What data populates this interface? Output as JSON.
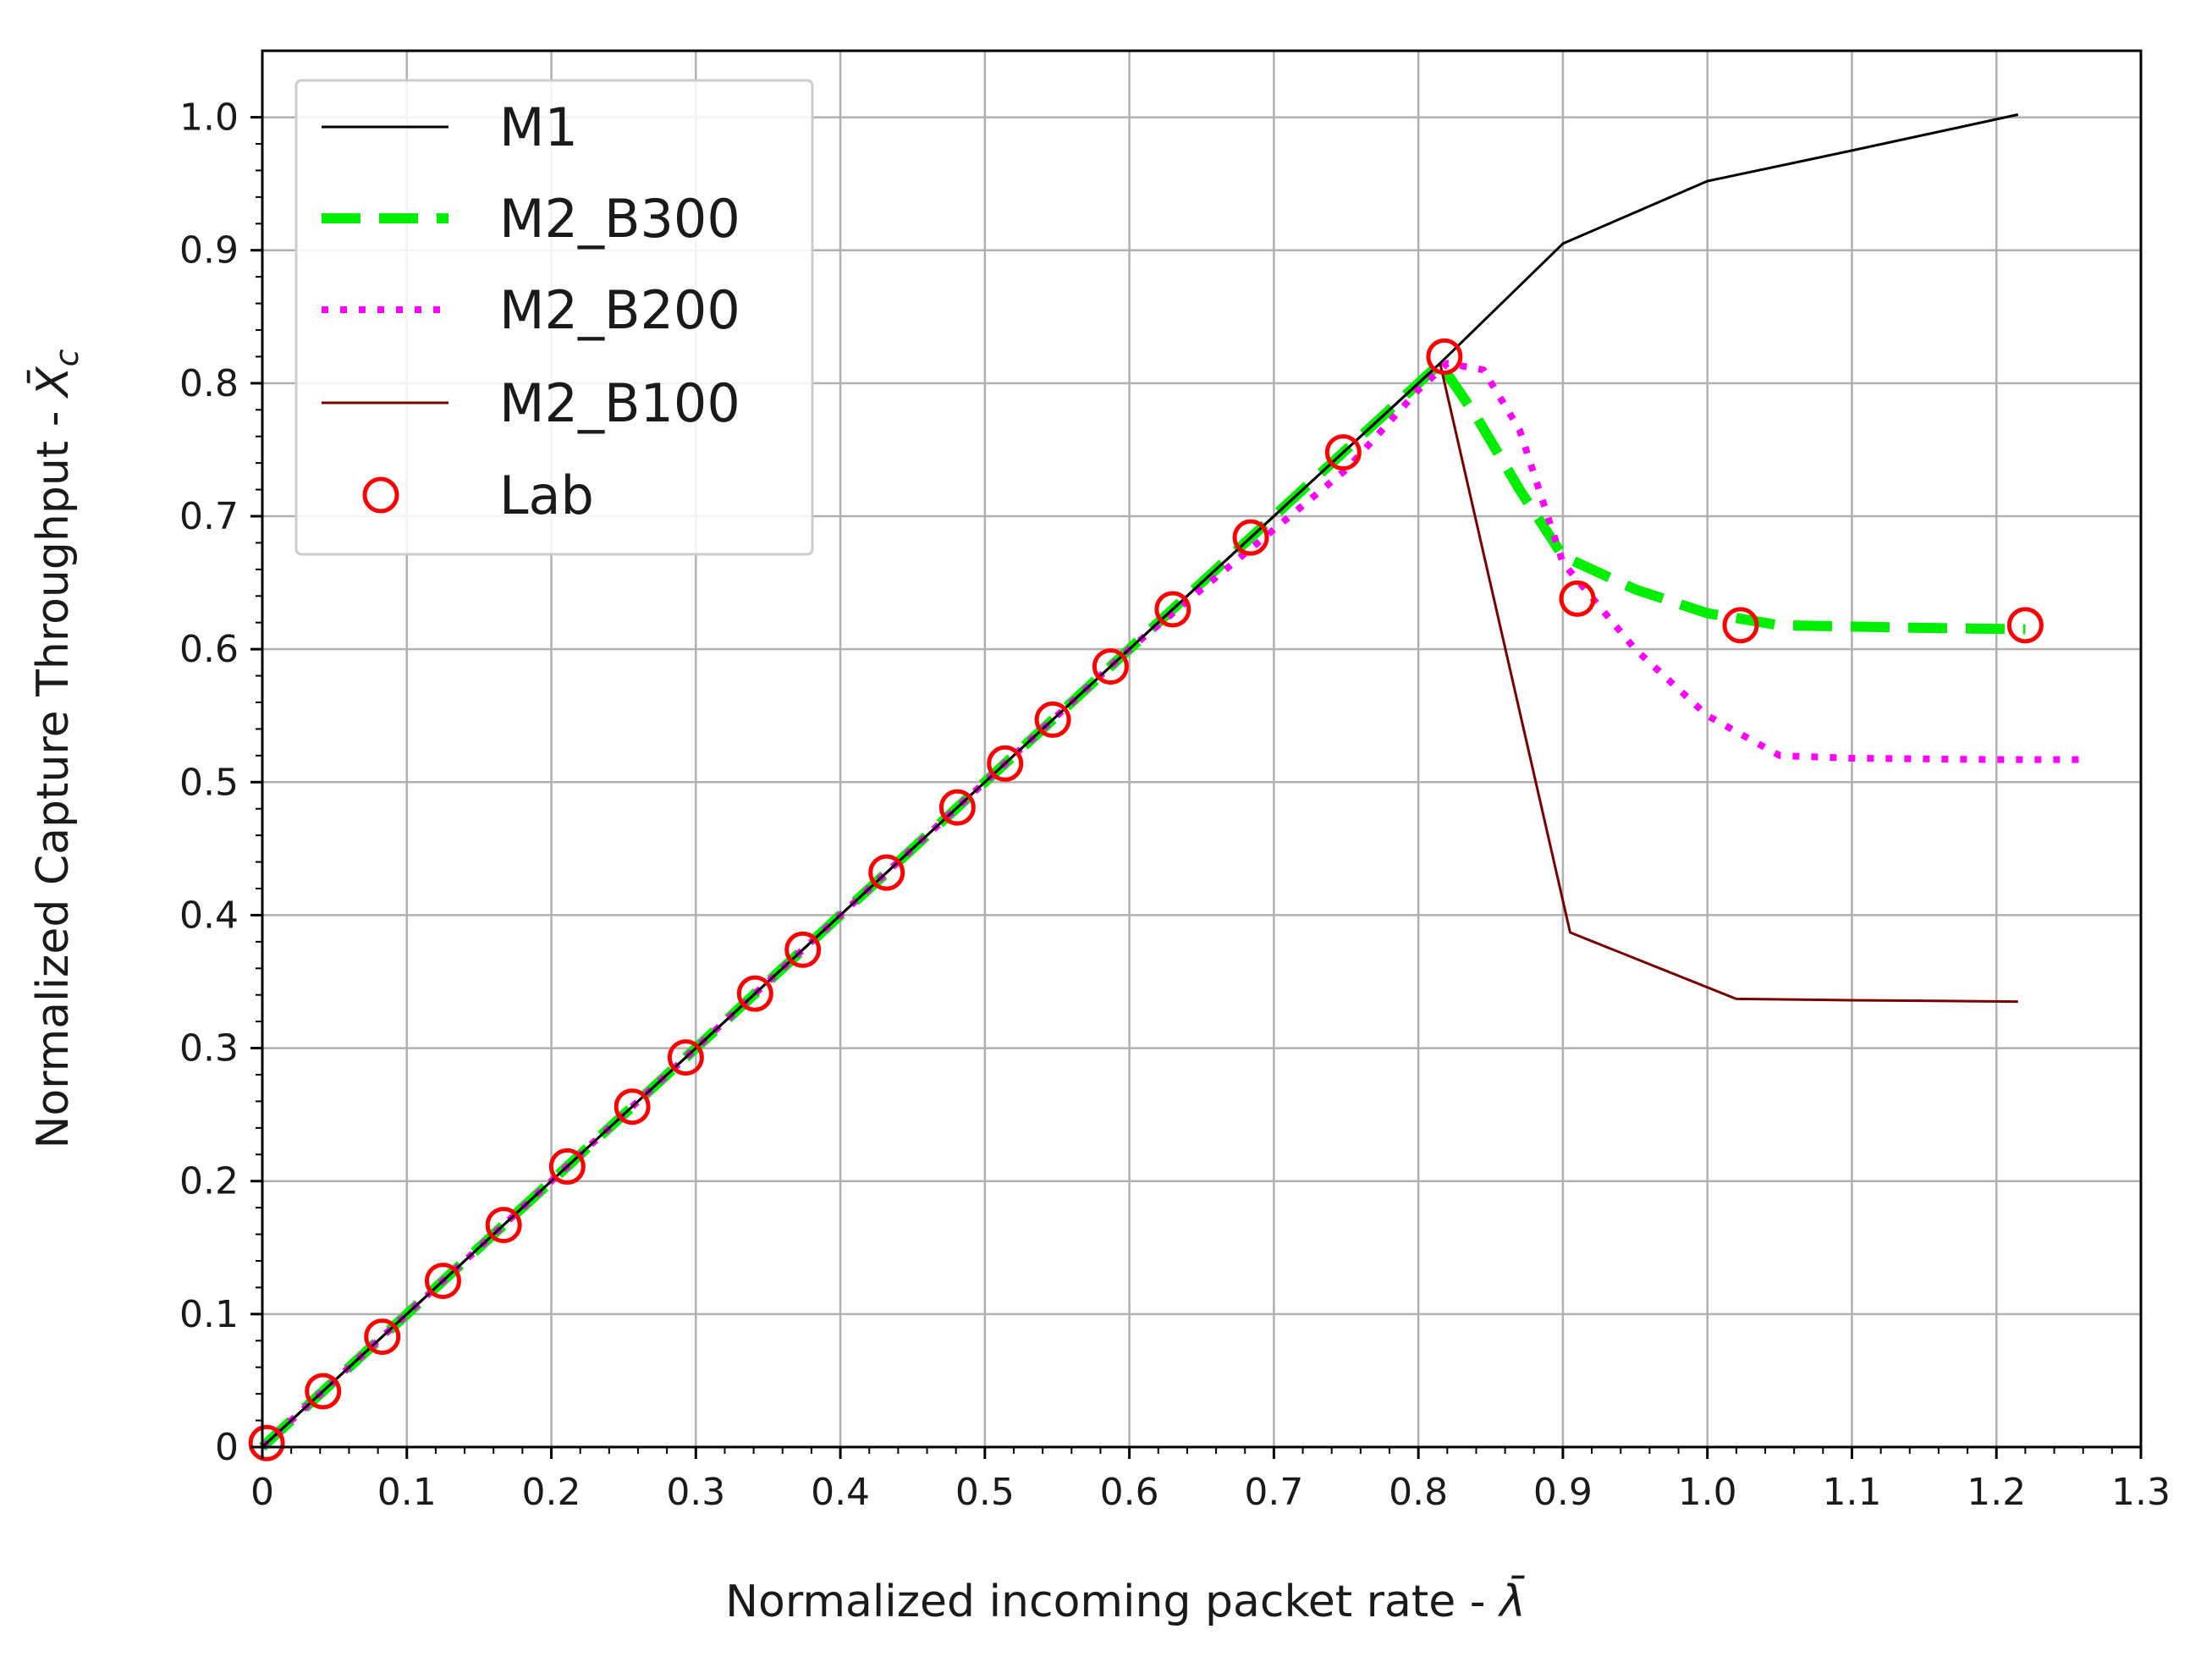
{
  "chart_data": {
    "type": "line",
    "title": "",
    "xlabel": "Normalized incoming packet rate - λ̄",
    "xlabel_main": "Normalized incoming packet rate - ",
    "xlabel_symbol": "λ̄",
    "ylabel": "Normalized Capture Throughput - X̄c",
    "ylabel_main": "Normalized Capture Throughput - ",
    "ylabel_symbol": "X̄",
    "ylabel_subscript": "c",
    "xlim": [
      0,
      1.3
    ],
    "ylim": [
      0,
      1.05
    ],
    "x_ticks": [
      0,
      0.1,
      0.2,
      0.3,
      0.4,
      0.5,
      0.6,
      0.7,
      0.8,
      0.9,
      1.0,
      1.1,
      1.2,
      1.3
    ],
    "x_tick_labels": [
      "0",
      "0.1",
      "0.2",
      "0.3",
      "0.4",
      "0.5",
      "0.6",
      "0.7",
      "0.8",
      "0.9",
      "1.0",
      "1.1",
      "1.2",
      "1.3"
    ],
    "y_ticks": [
      0,
      0.1,
      0.2,
      0.3,
      0.4,
      0.5,
      0.6,
      0.7,
      0.8,
      0.9,
      1.0
    ],
    "y_tick_labels": [
      "0",
      "0.1",
      "0.2",
      "0.3",
      "0.4",
      "0.5",
      "0.6",
      "0.7",
      "0.8",
      "0.9",
      "1.0"
    ],
    "grid": true,
    "legend_position": "top-left",
    "series": [
      {
        "name": "M1",
        "style": "solid-thin",
        "color": "#000000",
        "x": [
          0,
          0.1,
          0.2,
          0.3,
          0.4,
          0.5,
          0.6,
          0.7,
          0.8,
          0.815,
          0.9,
          1.0,
          1.1,
          1.215
        ],
        "y": [
          0,
          0.1,
          0.2,
          0.3,
          0.4,
          0.5,
          0.6,
          0.7,
          0.8,
          0.815,
          0.905,
          0.952,
          0.975,
          1.002
        ]
      },
      {
        "name": "M2_B300",
        "style": "dashed-thick",
        "color": "#00ee00",
        "x": [
          0,
          0.1,
          0.2,
          0.3,
          0.4,
          0.5,
          0.6,
          0.7,
          0.8,
          0.815,
          0.84,
          0.87,
          0.9,
          0.95,
          1.0,
          1.05,
          1.1,
          1.15,
          1.22
        ],
        "y": [
          0,
          0.1,
          0.2,
          0.3,
          0.4,
          0.5,
          0.6,
          0.7,
          0.8,
          0.815,
          0.775,
          0.72,
          0.67,
          0.645,
          0.627,
          0.618,
          0.617,
          0.616,
          0.615
        ]
      },
      {
        "name": "M2_B200",
        "style": "dotted",
        "color": "#ff00ff",
        "x": [
          0,
          0.1,
          0.2,
          0.3,
          0.4,
          0.5,
          0.6,
          0.7,
          0.75,
          0.8,
          0.82,
          0.845,
          0.87,
          0.9,
          0.95,
          1.0,
          1.05,
          1.1,
          1.2,
          1.26
        ],
        "y": [
          0,
          0.1,
          0.2,
          0.3,
          0.4,
          0.5,
          0.6,
          0.69,
          0.735,
          0.795,
          0.815,
          0.81,
          0.765,
          0.665,
          0.6,
          0.55,
          0.52,
          0.518,
          0.517,
          0.517
        ]
      },
      {
        "name": "M2_B100",
        "style": "solid-thin",
        "color": "#7a0000",
        "x": [
          0,
          0.1,
          0.2,
          0.3,
          0.4,
          0.5,
          0.6,
          0.7,
          0.8,
          0.815,
          0.905,
          1.02,
          1.1,
          1.215
        ],
        "y": [
          0,
          0.1,
          0.2,
          0.3,
          0.4,
          0.5,
          0.6,
          0.7,
          0.8,
          0.815,
          0.387,
          0.337,
          0.336,
          0.335
        ]
      },
      {
        "name": "Lab",
        "style": "markers-circle",
        "color": "#ff0000",
        "x": [
          0.003,
          0.042,
          0.083,
          0.125,
          0.167,
          0.211,
          0.256,
          0.293,
          0.341,
          0.374,
          0.432,
          0.481,
          0.514,
          0.547,
          0.587,
          0.63,
          0.684,
          0.748,
          0.818,
          0.91,
          1.023,
          1.22
        ],
        "y": [
          0.003,
          0.042,
          0.083,
          0.125,
          0.167,
          0.211,
          0.256,
          0.293,
          0.341,
          0.374,
          0.432,
          0.481,
          0.514,
          0.547,
          0.587,
          0.63,
          0.684,
          0.748,
          0.82,
          0.638,
          0.618,
          0.618
        ]
      }
    ]
  }
}
